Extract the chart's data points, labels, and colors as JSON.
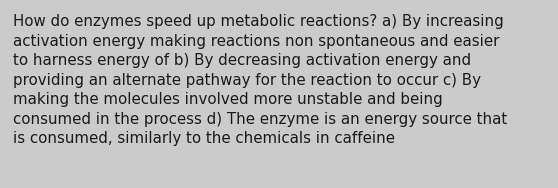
{
  "text_lines": [
    "How do enzymes speed up metabolic reactions? a) By increasing",
    "activation energy making reactions non spontaneous and easier",
    "to harness energy of b) By decreasing activation energy and",
    "providing an alternate pathway for the reaction to occur c) By",
    "making the molecules involved more unstable and being",
    "consumed in the process d) The enzyme is an energy source that",
    "is consumed, similarly to the chemicals in caffeine"
  ],
  "background_color": "#cbcbcb",
  "text_color": "#1a1a1a",
  "font_size": 10.8,
  "fig_width": 5.58,
  "fig_height": 1.88,
  "dpi": 100
}
